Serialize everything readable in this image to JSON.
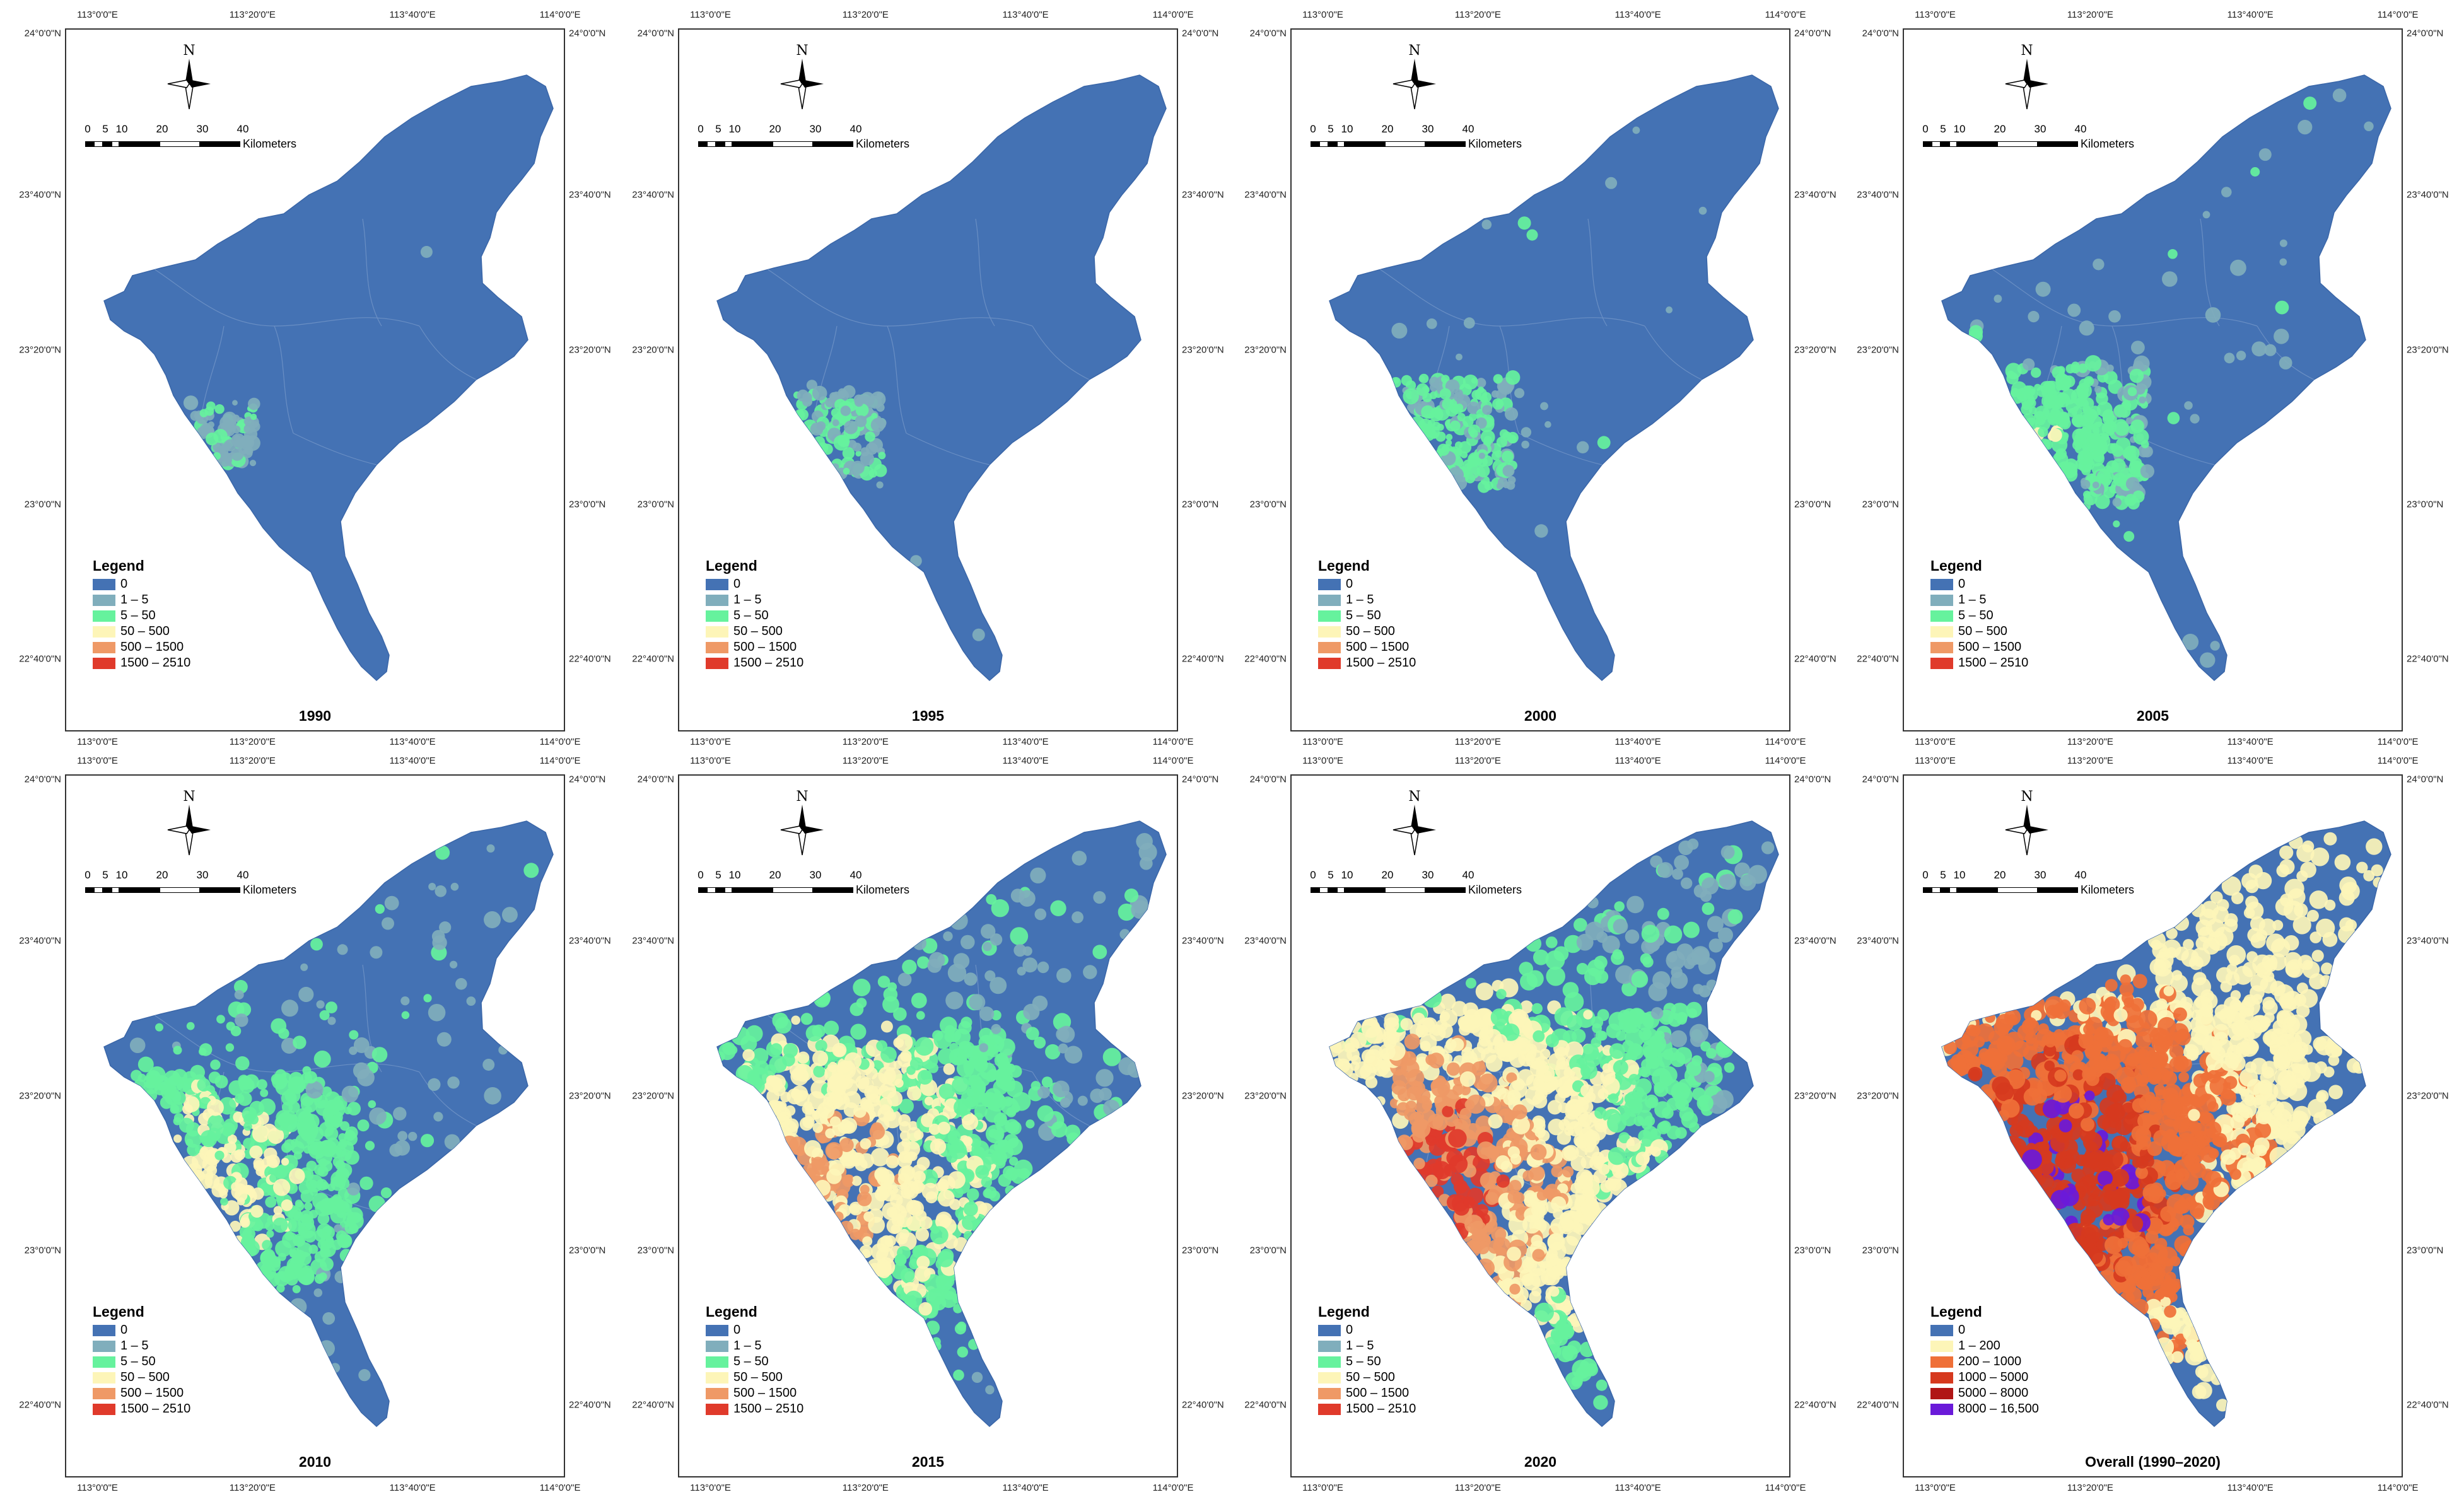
{
  "axis_ticks": {
    "lon": [
      "113°0'0\"E",
      "113°20'0\"E",
      "113°40'0\"E",
      "114°0'0\"E"
    ],
    "lat": [
      "24°0'0\"N",
      "23°40'0\"N",
      "23°20'0\"N",
      "23°0'0\"N",
      "22°40'0\"N"
    ]
  },
  "scale_bar": {
    "numbers": [
      "0",
      "5",
      "10",
      "20",
      "30",
      "40"
    ],
    "unit": "Kilometers"
  },
  "north_arrow": {
    "label": "N",
    "icon": "north-arrow-icon"
  },
  "legend_yearly": {
    "title": "Legend",
    "classes": [
      {
        "label": "0",
        "color": "#4472b4"
      },
      {
        "label": "1 – 5",
        "color": "#80aebc"
      },
      {
        "label": "5 – 50",
        "color": "#66f29d"
      },
      {
        "label": "50 – 500",
        "color": "#fdf5b8"
      },
      {
        "label": "500 – 1500",
        "color": "#ef9966"
      },
      {
        "label": "1500 – 2510",
        "color": "#e03a2b"
      }
    ]
  },
  "legend_overall": {
    "title": "Legend",
    "classes": [
      {
        "label": "0",
        "color": "#4472b4"
      },
      {
        "label": "1 – 200",
        "color": "#fdf5b8"
      },
      {
        "label": "200 – 1000",
        "color": "#ef7038"
      },
      {
        "label": "1000 – 5000",
        "color": "#d6391e"
      },
      {
        "label": "5000 – 8000",
        "color": "#b01515"
      },
      {
        "label": "8000 – 16,500",
        "color": "#6a1ad9"
      }
    ]
  },
  "panels": [
    {
      "title": "1990",
      "legend": "yearly",
      "intensity": 0.05
    },
    {
      "title": "1995",
      "legend": "yearly",
      "intensity": 0.12
    },
    {
      "title": "2000",
      "legend": "yearly",
      "intensity": 0.2
    },
    {
      "title": "2005",
      "legend": "yearly",
      "intensity": 0.3
    },
    {
      "title": "2010",
      "legend": "yearly",
      "intensity": 0.5
    },
    {
      "title": "2015",
      "legend": "yearly",
      "intensity": 0.72
    },
    {
      "title": "2020",
      "legend": "yearly",
      "intensity": 0.9
    },
    {
      "title": "Overall (1990–2020)",
      "legend": "overall",
      "intensity": 1.0
    }
  ],
  "colors": {
    "region_fill": "#4472b4",
    "boundary": "#6a8fc4"
  }
}
